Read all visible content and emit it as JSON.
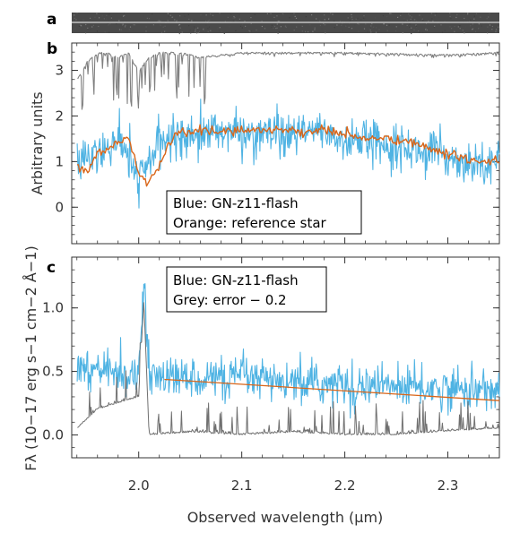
{
  "figure": {
    "panel_labels": [
      "a",
      "b",
      "c"
    ]
  },
  "chart_data": [
    {
      "panel": "a",
      "type": "heatmap",
      "description_visible": "2D spectrum strip",
      "xlim": [
        1.935,
        2.35
      ]
    },
    {
      "panel": "b",
      "type": "line",
      "ylabel": "Arbitrary units",
      "xlim": [
        1.935,
        2.35
      ],
      "ylim": [
        -0.8,
        3.6
      ],
      "yticks": [
        0,
        1,
        2,
        3
      ],
      "legend": [
        "Blue: GN-z11-flash",
        "Orange: reference star"
      ],
      "legend_position": "bottom-center",
      "series": [
        {
          "name": "Blue: GN-z11-flash",
          "color": "#4fb3e3",
          "x": [
            1.94,
            1.96,
            1.98,
            2.0,
            2.02,
            2.04,
            2.06,
            2.08,
            2.1,
            2.12,
            2.14,
            2.16,
            2.18,
            2.2,
            2.22,
            2.24,
            2.26,
            2.28,
            2.3,
            2.32,
            2.35
          ],
          "y": [
            1.0,
            1.1,
            1.5,
            0.6,
            1.4,
            1.6,
            1.6,
            1.7,
            1.6,
            1.6,
            1.5,
            1.6,
            1.7,
            1.4,
            1.5,
            1.4,
            1.3,
            1.2,
            1.1,
            1.0,
            1.0
          ]
        },
        {
          "name": "Orange: reference star",
          "color": "#d9661a",
          "x": [
            1.94,
            1.95,
            1.96,
            1.97,
            1.98,
            1.99,
            2.0,
            2.01,
            2.02,
            2.03,
            2.04,
            2.05,
            2.06,
            2.08,
            2.1,
            2.12,
            2.14,
            2.16,
            2.18,
            2.2,
            2.22,
            2.24,
            2.26,
            2.28,
            2.3,
            2.32,
            2.35
          ],
          "y": [
            0.9,
            0.8,
            1.2,
            1.3,
            1.4,
            1.5,
            0.7,
            0.6,
            0.9,
            1.4,
            1.7,
            1.6,
            1.7,
            1.65,
            1.7,
            1.7,
            1.7,
            1.65,
            1.7,
            1.6,
            1.5,
            1.5,
            1.45,
            1.3,
            1.15,
            1.05,
            1.0
          ]
        },
        {
          "name": "",
          "color": "#808080",
          "x": [
            1.94,
            1.95,
            1.96,
            1.97,
            1.98,
            1.99,
            2.0,
            2.01,
            2.02,
            2.04,
            2.06,
            2.1,
            2.2,
            2.3,
            2.35
          ],
          "y": [
            2.8,
            3.2,
            3.4,
            3.4,
            3.3,
            3.4,
            3.0,
            3.3,
            3.4,
            3.4,
            3.3,
            3.4,
            3.4,
            3.35,
            3.4
          ]
        }
      ]
    },
    {
      "panel": "c",
      "type": "line",
      "xlabel": "Observed wavelength (μm)",
      "ylabel": "Fλ (10−17 erg s−1 cm−2 Å−1)",
      "xlim": [
        1.935,
        2.35
      ],
      "ylim": [
        -0.18,
        1.4
      ],
      "yticks": [
        0.0,
        0.5,
        1.0
      ],
      "xticks": [
        2.0,
        2.1,
        2.2,
        2.3
      ],
      "legend": [
        "Blue: GN-z11-flash",
        "Grey: error − 0.2"
      ],
      "legend_position": "top-center",
      "series": [
        {
          "name": "Blue: GN-z11-flash",
          "color": "#4fb3e3",
          "x": [
            1.94,
            1.96,
            1.98,
            2.0,
            2.005,
            2.01,
            2.02,
            2.05,
            2.1,
            2.15,
            2.2,
            2.25,
            2.3,
            2.35
          ],
          "y": [
            0.55,
            0.5,
            0.5,
            0.45,
            1.2,
            0.5,
            0.45,
            0.45,
            0.45,
            0.4,
            0.4,
            0.38,
            0.36,
            0.35
          ]
        },
        {
          "name": "",
          "color": "#d9661a",
          "x": [
            2.02,
            2.35
          ],
          "y": [
            0.44,
            0.27
          ]
        },
        {
          "name": "Grey: error − 0.2",
          "color": "#707070",
          "x": [
            1.94,
            1.96,
            1.98,
            2.0,
            2.005,
            2.01,
            2.05,
            2.1,
            2.15,
            2.2,
            2.25,
            2.3,
            2.35
          ],
          "y": [
            0.05,
            0.2,
            0.25,
            0.3,
            1.05,
            0.0,
            0.02,
            0.0,
            0.02,
            0.0,
            0.0,
            0.03,
            0.05
          ]
        }
      ]
    }
  ]
}
